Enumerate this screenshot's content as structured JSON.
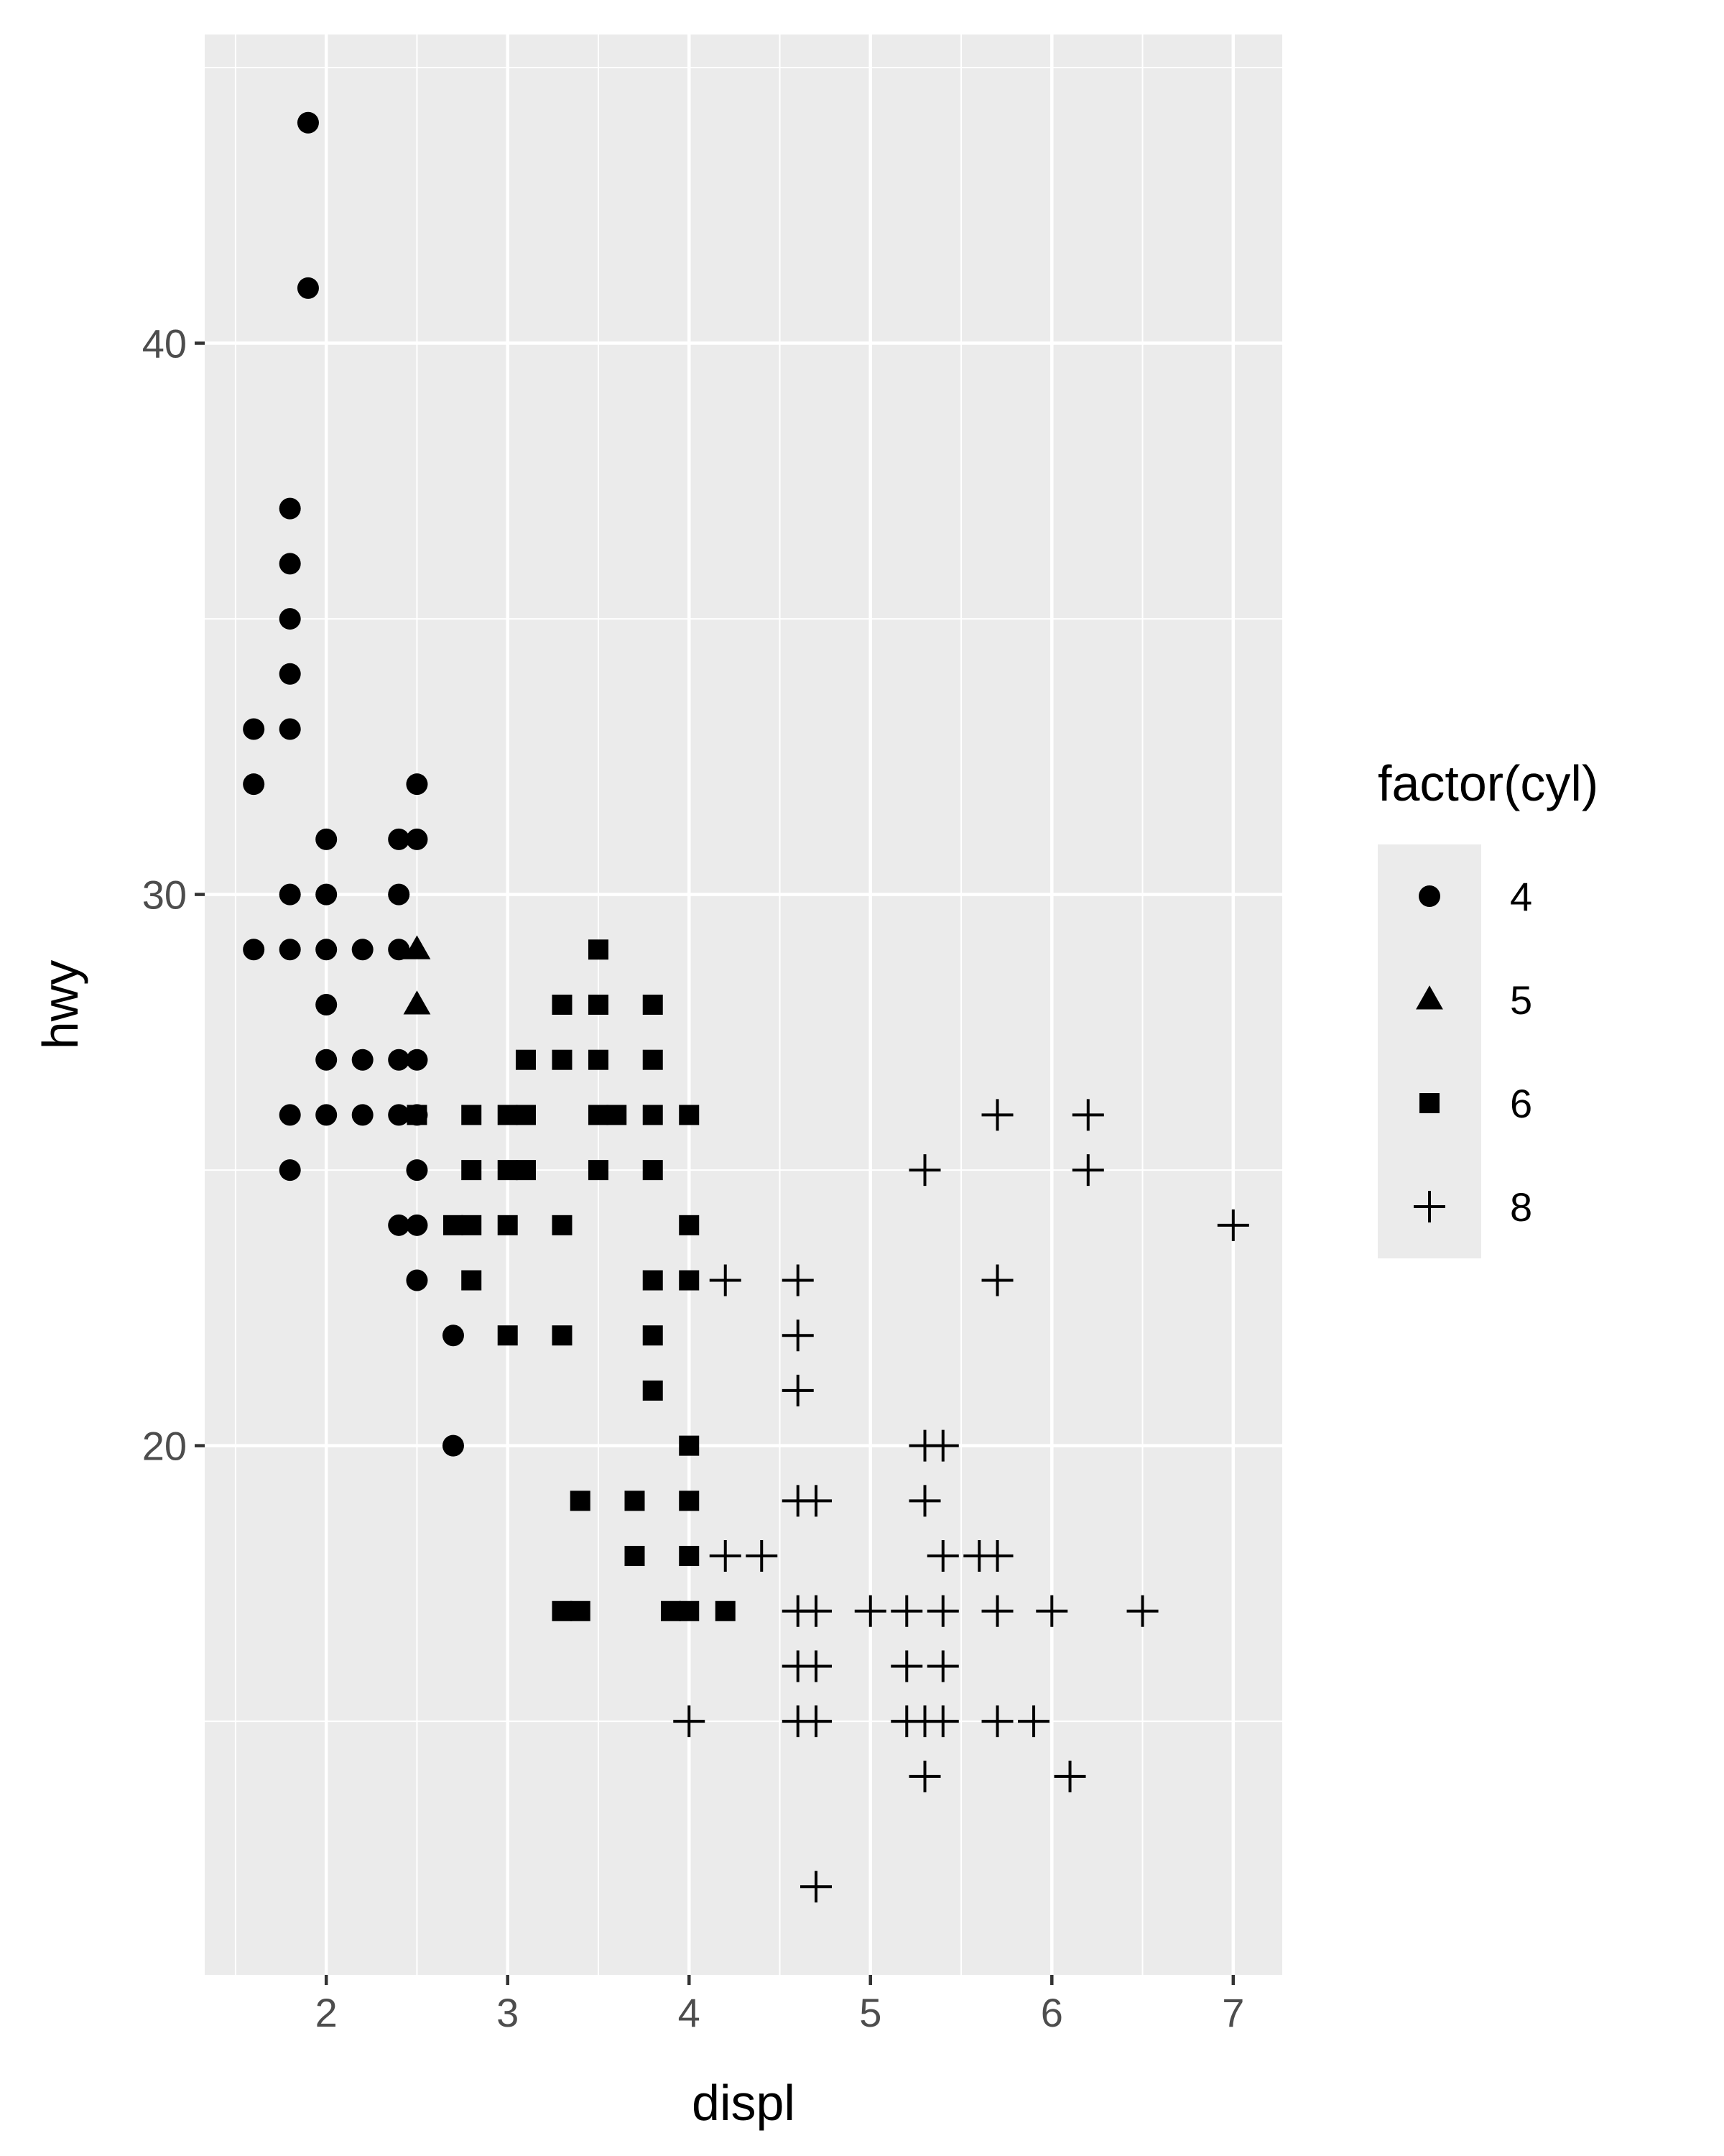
{
  "chart_data": {
    "type": "scatter",
    "title": "",
    "xlabel": "displ",
    "ylabel": "hwy",
    "xlim": [
      1.33,
      7.27
    ],
    "ylim": [
      10.4,
      45.6
    ],
    "x_ticks": [
      2,
      3,
      4,
      5,
      6,
      7
    ],
    "x_tick_labels": [
      "2",
      "3",
      "4",
      "5",
      "6",
      "7"
    ],
    "y_ticks": [
      20,
      30,
      40
    ],
    "y_tick_labels": [
      "20",
      "30",
      "40"
    ],
    "grid": true,
    "legend": {
      "title": "factor(cyl)",
      "position": "right",
      "entries": [
        {
          "label": "4",
          "shape": "circle"
        },
        {
          "label": "5",
          "shape": "triangle"
        },
        {
          "label": "6",
          "shape": "square"
        },
        {
          "label": "8",
          "shape": "plus"
        }
      ]
    },
    "colors": {
      "panel_bg": "#ebebeb",
      "grid_line": "#ffffff",
      "point": "#000000",
      "tick_label": "#4d4d4d",
      "tick_mark": "#333333"
    },
    "series": [
      {
        "name": "4",
        "shape": "circle",
        "points": [
          [
            1.9,
            44
          ],
          [
            1.9,
            41
          ],
          [
            1.8,
            37
          ],
          [
            1.8,
            36
          ],
          [
            1.8,
            35
          ],
          [
            1.8,
            34
          ],
          [
            1.8,
            33
          ],
          [
            1.6,
            33
          ],
          [
            1.6,
            32
          ],
          [
            2.5,
            32
          ],
          [
            2.0,
            31
          ],
          [
            2.4,
            31
          ],
          [
            2.5,
            31
          ],
          [
            1.8,
            30
          ],
          [
            2.0,
            30
          ],
          [
            2.4,
            30
          ],
          [
            1.6,
            29
          ],
          [
            1.8,
            29
          ],
          [
            2.0,
            29
          ],
          [
            2.2,
            29
          ],
          [
            2.4,
            29
          ],
          [
            2.0,
            28
          ],
          [
            2.0,
            27
          ],
          [
            2.2,
            27
          ],
          [
            2.4,
            27
          ],
          [
            2.5,
            27
          ],
          [
            1.8,
            26
          ],
          [
            2.0,
            26
          ],
          [
            2.2,
            26
          ],
          [
            2.4,
            26
          ],
          [
            2.5,
            26
          ],
          [
            1.8,
            25
          ],
          [
            2.5,
            25
          ],
          [
            2.4,
            24
          ],
          [
            2.5,
            24
          ],
          [
            2.5,
            23
          ],
          [
            2.7,
            22
          ],
          [
            2.7,
            20
          ]
        ]
      },
      {
        "name": "5",
        "shape": "triangle",
        "points": [
          [
            2.5,
            29
          ],
          [
            2.5,
            28
          ]
        ]
      },
      {
        "name": "6",
        "shape": "square",
        "points": [
          [
            3.5,
            29
          ],
          [
            3.3,
            28
          ],
          [
            3.5,
            28
          ],
          [
            3.8,
            28
          ],
          [
            3.1,
            27
          ],
          [
            3.3,
            27
          ],
          [
            3.5,
            27
          ],
          [
            3.8,
            27
          ],
          [
            2.5,
            26
          ],
          [
            2.8,
            26
          ],
          [
            3.0,
            26
          ],
          [
            3.1,
            26
          ],
          [
            3.5,
            26
          ],
          [
            3.6,
            26
          ],
          [
            3.8,
            26
          ],
          [
            4.0,
            26
          ],
          [
            2.8,
            25
          ],
          [
            3.0,
            25
          ],
          [
            3.1,
            25
          ],
          [
            3.5,
            25
          ],
          [
            3.8,
            25
          ],
          [
            2.7,
            24
          ],
          [
            2.8,
            24
          ],
          [
            3.0,
            24
          ],
          [
            3.3,
            24
          ],
          [
            4.0,
            24
          ],
          [
            2.8,
            23
          ],
          [
            3.8,
            23
          ],
          [
            4.0,
            23
          ],
          [
            3.0,
            22
          ],
          [
            3.3,
            22
          ],
          [
            3.8,
            22
          ],
          [
            3.8,
            21
          ],
          [
            4.0,
            20
          ],
          [
            3.4,
            19
          ],
          [
            3.7,
            19
          ],
          [
            4.0,
            19
          ],
          [
            3.7,
            18
          ],
          [
            4.0,
            18
          ],
          [
            3.3,
            17
          ],
          [
            3.4,
            17
          ],
          [
            3.9,
            17
          ],
          [
            4.0,
            17
          ],
          [
            4.2,
            17
          ]
        ]
      },
      {
        "name": "8",
        "shape": "plus",
        "points": [
          [
            5.7,
            26
          ],
          [
            6.2,
            26
          ],
          [
            5.3,
            25
          ],
          [
            6.2,
            25
          ],
          [
            7.0,
            24
          ],
          [
            4.2,
            23
          ],
          [
            4.6,
            23
          ],
          [
            5.7,
            23
          ],
          [
            4.6,
            22
          ],
          [
            4.6,
            21
          ],
          [
            5.3,
            20
          ],
          [
            5.4,
            20
          ],
          [
            4.6,
            19
          ],
          [
            4.7,
            19
          ],
          [
            5.3,
            19
          ],
          [
            4.2,
            18
          ],
          [
            4.4,
            18
          ],
          [
            5.4,
            18
          ],
          [
            5.6,
            18
          ],
          [
            5.7,
            18
          ],
          [
            4.6,
            17
          ],
          [
            4.7,
            17
          ],
          [
            5.0,
            17
          ],
          [
            5.2,
            17
          ],
          [
            5.4,
            17
          ],
          [
            5.7,
            17
          ],
          [
            6.0,
            17
          ],
          [
            6.5,
            17
          ],
          [
            4.6,
            16
          ],
          [
            4.7,
            16
          ],
          [
            5.2,
            16
          ],
          [
            5.4,
            16
          ],
          [
            4.0,
            15
          ],
          [
            4.6,
            15
          ],
          [
            4.7,
            15
          ],
          [
            5.2,
            15
          ],
          [
            5.3,
            15
          ],
          [
            5.4,
            15
          ],
          [
            5.7,
            15
          ],
          [
            5.9,
            15
          ],
          [
            5.3,
            14
          ],
          [
            6.1,
            14
          ],
          [
            4.7,
            12
          ]
        ]
      }
    ]
  }
}
